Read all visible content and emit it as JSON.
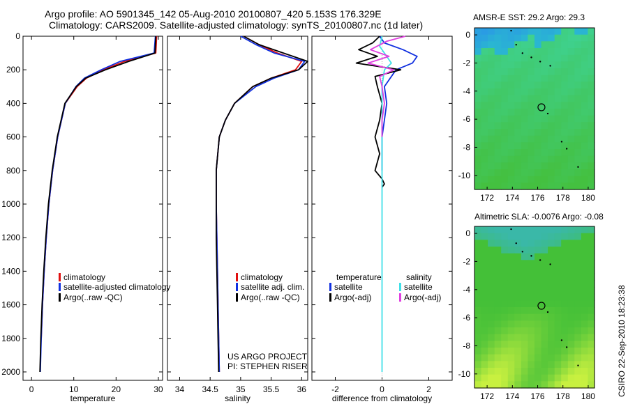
{
  "title": {
    "line1": "Argo profile: AO 5901345_142 05-Aug-2010 20100807_420 5.153S 176.329E",
    "line2": "Climatology: CARS2009. Satellite-adjusted climatology: synTS_20100807.nc (1d later)"
  },
  "notes": {
    "project": "US ARGO PROJECT",
    "pi": "PI: STEPHEN RISER"
  },
  "side_label": "CSIRO 22-Sep-2010 18:23:38",
  "colors": {
    "climatology": "#e01010",
    "satellite": "#1030e0",
    "argo": "#000000",
    "sal_satellite": "#40e0e8",
    "sal_argo": "#e040e0"
  },
  "chart_data": [
    {
      "type": "line",
      "xlabel": "temperature",
      "ylabel": "",
      "xlim": [
        -2,
        31
      ],
      "ylim": [
        2050,
        0
      ],
      "xticks": [
        "0",
        "10",
        "20",
        "30"
      ],
      "yticks": [
        "0",
        "200",
        "400",
        "600",
        "800",
        "1000",
        "1200",
        "1400",
        "1600",
        "1800",
        "2000"
      ],
      "legend": [
        "climatology",
        "satellite-adjusted climatology",
        "Argo(..raw -QC)"
      ],
      "series": [
        {
          "name": "climatology",
          "color": "#e01010",
          "depth": [
            0,
            100,
            150,
            200,
            250,
            300,
            400,
            600,
            800,
            1000,
            1200,
            1400,
            1600,
            1800
          ],
          "values": [
            29.6,
            29.4,
            22,
            17,
            13,
            10.8,
            8,
            6.2,
            5,
            4.1,
            3.5,
            3.0,
            2.6,
            2.3
          ]
        },
        {
          "name": "satellite-adjusted climatology",
          "color": "#1030e0",
          "depth": [
            0,
            100,
            150,
            200,
            250,
            300,
            400,
            600,
            800,
            1000,
            1200,
            1400,
            1600,
            1800,
            2000
          ],
          "values": [
            29.3,
            29.0,
            21,
            16.5,
            12.5,
            10.5,
            8,
            6.2,
            5,
            4.1,
            3.5,
            3.0,
            2.6,
            2.3,
            2.1
          ]
        },
        {
          "name": "Argo(..raw -QC)",
          "color": "#000000",
          "depth": [
            0,
            100,
            150,
            200,
            250,
            300,
            400,
            600,
            800,
            1000,
            1200,
            1400,
            1600,
            1800,
            2000
          ],
          "values": [
            29.4,
            29.2,
            23,
            17.5,
            12.8,
            10.6,
            7.9,
            6.1,
            4.9,
            4.0,
            3.4,
            2.9,
            2.5,
            2.2,
            2.0
          ]
        }
      ]
    },
    {
      "type": "line",
      "xlabel": "salinity",
      "xlim": [
        33.8,
        36.1
      ],
      "ylim": [
        2050,
        0
      ],
      "xticks": [
        "34",
        "34.5",
        "35",
        "35.5",
        "36"
      ],
      "legend": [
        "climatology",
        "satellite adj. clim.",
        "Argo(..raw -QC)"
      ],
      "series": [
        {
          "name": "climatology",
          "color": "#e01010",
          "depth": [
            0,
            50,
            100,
            150,
            200,
            250,
            300,
            400,
            500,
            600,
            800,
            1000,
            1200,
            1400,
            1600,
            1800,
            2000
          ],
          "values": [
            35.05,
            35.3,
            35.6,
            36.0,
            35.9,
            35.5,
            35.2,
            34.9,
            34.75,
            34.65,
            34.6,
            34.6,
            34.61,
            34.62,
            34.63,
            34.64,
            34.65
          ]
        },
        {
          "name": "satellite adj. clim.",
          "color": "#1030e0",
          "depth": [
            0,
            50,
            100,
            150,
            200,
            250,
            300,
            400,
            500,
            600,
            800,
            1000,
            1200,
            1400,
            1600,
            1800,
            2000
          ],
          "values": [
            35.0,
            35.25,
            35.55,
            36.05,
            35.95,
            35.55,
            35.25,
            34.9,
            34.75,
            34.65,
            34.6,
            34.6,
            34.61,
            34.62,
            34.63,
            34.64,
            34.65
          ]
        },
        {
          "name": "Argo(..raw -QC)",
          "color": "#000000",
          "depth": [
            0,
            50,
            100,
            150,
            200,
            250,
            300,
            400,
            500,
            600,
            800,
            1000,
            1200,
            1400,
            1600,
            1800,
            2000
          ],
          "values": [
            35.05,
            35.3,
            35.7,
            36.1,
            35.95,
            35.5,
            35.2,
            34.9,
            34.75,
            34.65,
            34.6,
            34.6,
            34.6,
            34.61,
            34.62,
            34.63,
            34.64
          ]
        }
      ]
    },
    {
      "type": "line",
      "xlabel": "difference from climatology",
      "xlim": [
        -3,
        3
      ],
      "ylim": [
        2050,
        0
      ],
      "xticks": [
        "-2",
        "0",
        "2"
      ],
      "legend_groups": {
        "temperature": [
          "satellite",
          "Argo(-adj)"
        ],
        "salinity": [
          "satellite",
          "Argo(-adj)"
        ]
      },
      "series": [
        {
          "name": "temperature satellite",
          "color": "#1030e0",
          "depth": [
            0,
            40,
            80,
            120,
            160,
            200,
            240,
            300,
            400,
            500,
            600,
            700,
            800
          ],
          "values": [
            -0.1,
            0.1,
            0.9,
            1.5,
            1.3,
            0.6,
            0.4,
            0.1,
            0.2,
            0.1,
            0.0,
            0.0,
            0.0
          ]
        },
        {
          "name": "temperature Argo(-adj)",
          "color": "#000000",
          "depth": [
            0,
            40,
            80,
            120,
            160,
            200,
            240,
            300,
            400,
            500,
            600,
            700,
            800,
            850,
            880,
            900
          ],
          "values": [
            -0.1,
            -0.4,
            -1.0,
            -0.2,
            -1.1,
            0.8,
            -0.3,
            -0.2,
            0.0,
            -0.1,
            -0.3,
            -0.1,
            -0.3,
            0.0,
            0.1,
            0.0
          ]
        },
        {
          "name": "salinity satellite",
          "color": "#40e0e8",
          "depth": [
            0,
            60,
            120,
            160,
            200,
            300,
            400,
            600,
            800,
            1000,
            1200,
            1400,
            1600,
            1800,
            2000
          ],
          "values": [
            0.0,
            -0.1,
            0.2,
            0.4,
            0.1,
            0.0,
            0.0,
            0.0,
            0.0,
            0.0,
            0.0,
            0.0,
            0.0,
            0.0,
            0.0
          ]
        },
        {
          "name": "salinity Argo(-adj)",
          "color": "#e040e0",
          "depth": [
            0,
            30,
            80,
            120,
            160,
            200,
            240,
            300,
            400,
            500,
            600
          ],
          "values": [
            1.0,
            0.2,
            -0.5,
            0.3,
            -0.6,
            0.5,
            -0.1,
            0.0,
            0.1,
            0.0,
            0.0
          ]
        }
      ]
    },
    {
      "type": "heatmap",
      "title": "AMSR-E SST: 29.2 Argo: 29.3",
      "xlim": [
        171,
        180.5
      ],
      "ylim": [
        -11,
        0.5
      ],
      "xticks": [
        "172",
        "174",
        "176",
        "178",
        "180"
      ],
      "yticks": [
        "0",
        "-2",
        "-4",
        "-6",
        "-8",
        "-10"
      ],
      "colors": [
        "#2aa0e0",
        "#2ad0c0",
        "#3fd08a",
        "#44c040"
      ],
      "marker": {
        "lon": 176.3,
        "lat": -5.15
      }
    },
    {
      "type": "heatmap",
      "title": "Altimetric SLA: -0.0076 Argo: -0.08",
      "xlim": [
        171,
        180.5
      ],
      "ylim": [
        -11,
        0.5
      ],
      "xticks": [
        "172",
        "174",
        "176",
        "178",
        "180"
      ],
      "yticks": [
        "0",
        "-2",
        "-4",
        "-6",
        "-8",
        "-10"
      ],
      "colors": [
        "#3ab8a8",
        "#40c060",
        "#44c038",
        "#c8f040"
      ],
      "marker": {
        "lon": 176.3,
        "lat": -5.15
      }
    }
  ]
}
